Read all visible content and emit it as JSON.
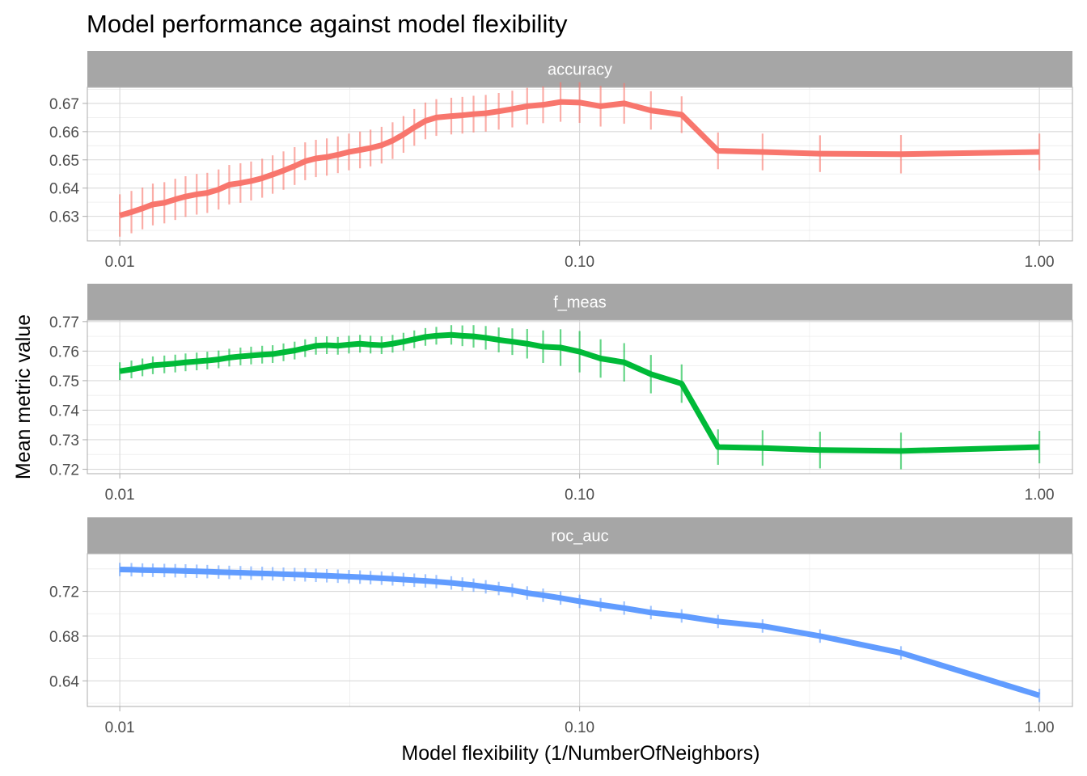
{
  "chart_data": {
    "type": "line",
    "title": "Model performance against model flexibility",
    "xlabel": "Model flexibility (1/NumberOfNeighbors)",
    "ylabel": "Mean metric value",
    "x_scale": "log10",
    "xlim": [
      0.0085,
      1.18
    ],
    "x_ticks": [
      0.01,
      0.1,
      1
    ],
    "x_tick_labels": [
      "0.01",
      "0.10",
      "1.00"
    ],
    "grid": true,
    "legend": "none",
    "panels": [
      {
        "name": "accuracy",
        "color": "#f8766d",
        "ylim": [
          0.6213,
          0.6757
        ],
        "y_ticks": [
          0.63,
          0.64,
          0.65,
          0.66,
          0.67
        ],
        "y_tick_labels": [
          "0.63",
          "0.64",
          "0.65",
          "0.66",
          "0.67"
        ],
        "points": [
          [
            0.01,
            0.6303,
            0.0075
          ],
          [
            0.0106,
            0.6315,
            0.0075
          ],
          [
            0.0112,
            0.6328,
            0.0074
          ],
          [
            0.0118,
            0.6342,
            0.0074
          ],
          [
            0.0125,
            0.6348,
            0.0073
          ],
          [
            0.0132,
            0.636,
            0.0073
          ],
          [
            0.0139,
            0.637,
            0.0072
          ],
          [
            0.0147,
            0.6378,
            0.0072
          ],
          [
            0.0155,
            0.6383,
            0.0071
          ],
          [
            0.0164,
            0.6395,
            0.0071
          ],
          [
            0.0173,
            0.6412,
            0.007
          ],
          [
            0.0183,
            0.6418,
            0.007
          ],
          [
            0.0193,
            0.6425,
            0.0069
          ],
          [
            0.0204,
            0.6435,
            0.0069
          ],
          [
            0.0215,
            0.6448,
            0.0068
          ],
          [
            0.0227,
            0.6462,
            0.0068
          ],
          [
            0.024,
            0.6478,
            0.0067
          ],
          [
            0.0253,
            0.6495,
            0.0067
          ],
          [
            0.0267,
            0.6505,
            0.0066
          ],
          [
            0.0282,
            0.651,
            0.0066
          ],
          [
            0.0298,
            0.6518,
            0.0065
          ],
          [
            0.0315,
            0.6528,
            0.0065
          ],
          [
            0.0333,
            0.6535,
            0.0065
          ],
          [
            0.0351,
            0.6542,
            0.0065
          ],
          [
            0.0371,
            0.6552,
            0.0065
          ],
          [
            0.0392,
            0.6568,
            0.0065
          ],
          [
            0.0414,
            0.659,
            0.0065
          ],
          [
            0.0437,
            0.6615,
            0.0065
          ],
          [
            0.0462,
            0.6638,
            0.0065
          ],
          [
            0.0488,
            0.665,
            0.0065
          ],
          [
            0.0526,
            0.6655,
            0.0065
          ],
          [
            0.0556,
            0.6658,
            0.0065
          ],
          [
            0.0588,
            0.6662,
            0.0065
          ],
          [
            0.0625,
            0.6665,
            0.0065
          ],
          [
            0.0667,
            0.6672,
            0.0065
          ],
          [
            0.0714,
            0.668,
            0.0065
          ],
          [
            0.0769,
            0.669,
            0.0065
          ],
          [
            0.0833,
            0.6695,
            0.0065
          ],
          [
            0.0909,
            0.6705,
            0.007
          ],
          [
            0.1,
            0.6703,
            0.0072
          ],
          [
            0.1111,
            0.669,
            0.0072
          ],
          [
            0.125,
            0.67,
            0.0072
          ],
          [
            0.1429,
            0.6675,
            0.0068
          ],
          [
            0.1667,
            0.666,
            0.0065
          ],
          [
            0.2,
            0.6532,
            0.0065
          ],
          [
            0.25,
            0.6528,
            0.0065
          ],
          [
            0.3333,
            0.6522,
            0.0065
          ],
          [
            0.5,
            0.652,
            0.0068
          ],
          [
            1,
            0.6528,
            0.0065
          ]
        ]
      },
      {
        "name": "f_meas",
        "color": "#00ba38",
        "ylim": [
          0.7185,
          0.7705
        ],
        "y_ticks": [
          0.72,
          0.73,
          0.74,
          0.75,
          0.76,
          0.77
        ],
        "y_tick_labels": [
          "0.72",
          "0.73",
          "0.74",
          "0.75",
          "0.76",
          "0.77"
        ],
        "points": [
          [
            0.01,
            0.7532,
            0.003
          ],
          [
            0.0106,
            0.7538,
            0.003
          ],
          [
            0.0112,
            0.7545,
            0.003
          ],
          [
            0.0118,
            0.7552,
            0.003
          ],
          [
            0.0125,
            0.7555,
            0.003
          ],
          [
            0.0132,
            0.7558,
            0.003
          ],
          [
            0.0139,
            0.7562,
            0.003
          ],
          [
            0.0147,
            0.7565,
            0.003
          ],
          [
            0.0155,
            0.7568,
            0.003
          ],
          [
            0.0164,
            0.7572,
            0.003
          ],
          [
            0.0173,
            0.7578,
            0.003
          ],
          [
            0.0183,
            0.7582,
            0.003
          ],
          [
            0.0193,
            0.7585,
            0.003
          ],
          [
            0.0204,
            0.7588,
            0.003
          ],
          [
            0.0215,
            0.759,
            0.003
          ],
          [
            0.0227,
            0.7596,
            0.003
          ],
          [
            0.024,
            0.7602,
            0.003
          ],
          [
            0.0253,
            0.761,
            0.003
          ],
          [
            0.0267,
            0.7618,
            0.003
          ],
          [
            0.0282,
            0.762,
            0.003
          ],
          [
            0.0298,
            0.7618,
            0.003
          ],
          [
            0.0315,
            0.7622,
            0.003
          ],
          [
            0.0333,
            0.7625,
            0.003
          ],
          [
            0.0351,
            0.7622,
            0.003
          ],
          [
            0.0371,
            0.762,
            0.003
          ],
          [
            0.0392,
            0.7625,
            0.003
          ],
          [
            0.0414,
            0.7632,
            0.003
          ],
          [
            0.0437,
            0.764,
            0.003
          ],
          [
            0.0462,
            0.7648,
            0.003
          ],
          [
            0.0488,
            0.7652,
            0.003
          ],
          [
            0.0526,
            0.7655,
            0.0033
          ],
          [
            0.0556,
            0.7652,
            0.0035
          ],
          [
            0.0588,
            0.765,
            0.0038
          ],
          [
            0.0625,
            0.7645,
            0.004
          ],
          [
            0.0667,
            0.7638,
            0.0042
          ],
          [
            0.0714,
            0.7632,
            0.0045
          ],
          [
            0.0769,
            0.7625,
            0.005
          ],
          [
            0.0833,
            0.7615,
            0.0055
          ],
          [
            0.0909,
            0.7612,
            0.0062
          ],
          [
            0.1,
            0.7598,
            0.007
          ],
          [
            0.1111,
            0.7575,
            0.0065
          ],
          [
            0.125,
            0.7562,
            0.0065
          ],
          [
            0.1429,
            0.7522,
            0.0065
          ],
          [
            0.1667,
            0.749,
            0.0065
          ],
          [
            0.2,
            0.7275,
            0.006
          ],
          [
            0.25,
            0.7272,
            0.006
          ],
          [
            0.3333,
            0.7265,
            0.0062
          ],
          [
            0.5,
            0.7262,
            0.0062
          ],
          [
            1,
            0.7275,
            0.0055
          ]
        ]
      },
      {
        "name": "roc_auc",
        "color": "#619cff",
        "ylim": [
          0.6171,
          0.7536
        ],
        "y_ticks": [
          0.64,
          0.68,
          0.72
        ],
        "y_tick_labels": [
          "0.64",
          "0.68",
          "0.72"
        ],
        "points": [
          [
            0.01,
            0.7395,
            0.006
          ],
          [
            0.0106,
            0.7393,
            0.006
          ],
          [
            0.0112,
            0.739,
            0.006
          ],
          [
            0.0118,
            0.7388,
            0.006
          ],
          [
            0.0125,
            0.7386,
            0.006
          ],
          [
            0.0132,
            0.7384,
            0.006
          ],
          [
            0.0139,
            0.7382,
            0.006
          ],
          [
            0.0147,
            0.7379,
            0.006
          ],
          [
            0.0155,
            0.7376,
            0.006
          ],
          [
            0.0164,
            0.7372,
            0.006
          ],
          [
            0.0173,
            0.7369,
            0.006
          ],
          [
            0.0183,
            0.7366,
            0.006
          ],
          [
            0.0193,
            0.7363,
            0.006
          ],
          [
            0.0204,
            0.736,
            0.006
          ],
          [
            0.0215,
            0.7357,
            0.006
          ],
          [
            0.0227,
            0.7353,
            0.006
          ],
          [
            0.024,
            0.735,
            0.006
          ],
          [
            0.0253,
            0.7347,
            0.006
          ],
          [
            0.0267,
            0.7343,
            0.006
          ],
          [
            0.0282,
            0.7339,
            0.006
          ],
          [
            0.0298,
            0.7335,
            0.006
          ],
          [
            0.0315,
            0.7331,
            0.006
          ],
          [
            0.0333,
            0.7327,
            0.006
          ],
          [
            0.0351,
            0.7322,
            0.006
          ],
          [
            0.0371,
            0.7317,
            0.006
          ],
          [
            0.0392,
            0.7311,
            0.006
          ],
          [
            0.0414,
            0.7305,
            0.006
          ],
          [
            0.0437,
            0.7299,
            0.006
          ],
          [
            0.0462,
            0.7293,
            0.006
          ],
          [
            0.0488,
            0.7286,
            0.006
          ],
          [
            0.0526,
            0.7275,
            0.006
          ],
          [
            0.0556,
            0.7265,
            0.006
          ],
          [
            0.0588,
            0.7255,
            0.006
          ],
          [
            0.0625,
            0.724,
            0.006
          ],
          [
            0.0667,
            0.7225,
            0.006
          ],
          [
            0.0714,
            0.721,
            0.006
          ],
          [
            0.0769,
            0.7185,
            0.006
          ],
          [
            0.0833,
            0.7165,
            0.006
          ],
          [
            0.0909,
            0.714,
            0.006
          ],
          [
            0.1,
            0.711,
            0.006
          ],
          [
            0.1111,
            0.708,
            0.006
          ],
          [
            0.125,
            0.705,
            0.006
          ],
          [
            0.1429,
            0.701,
            0.006
          ],
          [
            0.1667,
            0.698,
            0.006
          ],
          [
            0.2,
            0.693,
            0.006
          ],
          [
            0.25,
            0.689,
            0.006
          ],
          [
            0.3333,
            0.68,
            0.006
          ],
          [
            0.5,
            0.665,
            0.006
          ],
          [
            1,
            0.627,
            0.006
          ]
        ]
      }
    ]
  }
}
